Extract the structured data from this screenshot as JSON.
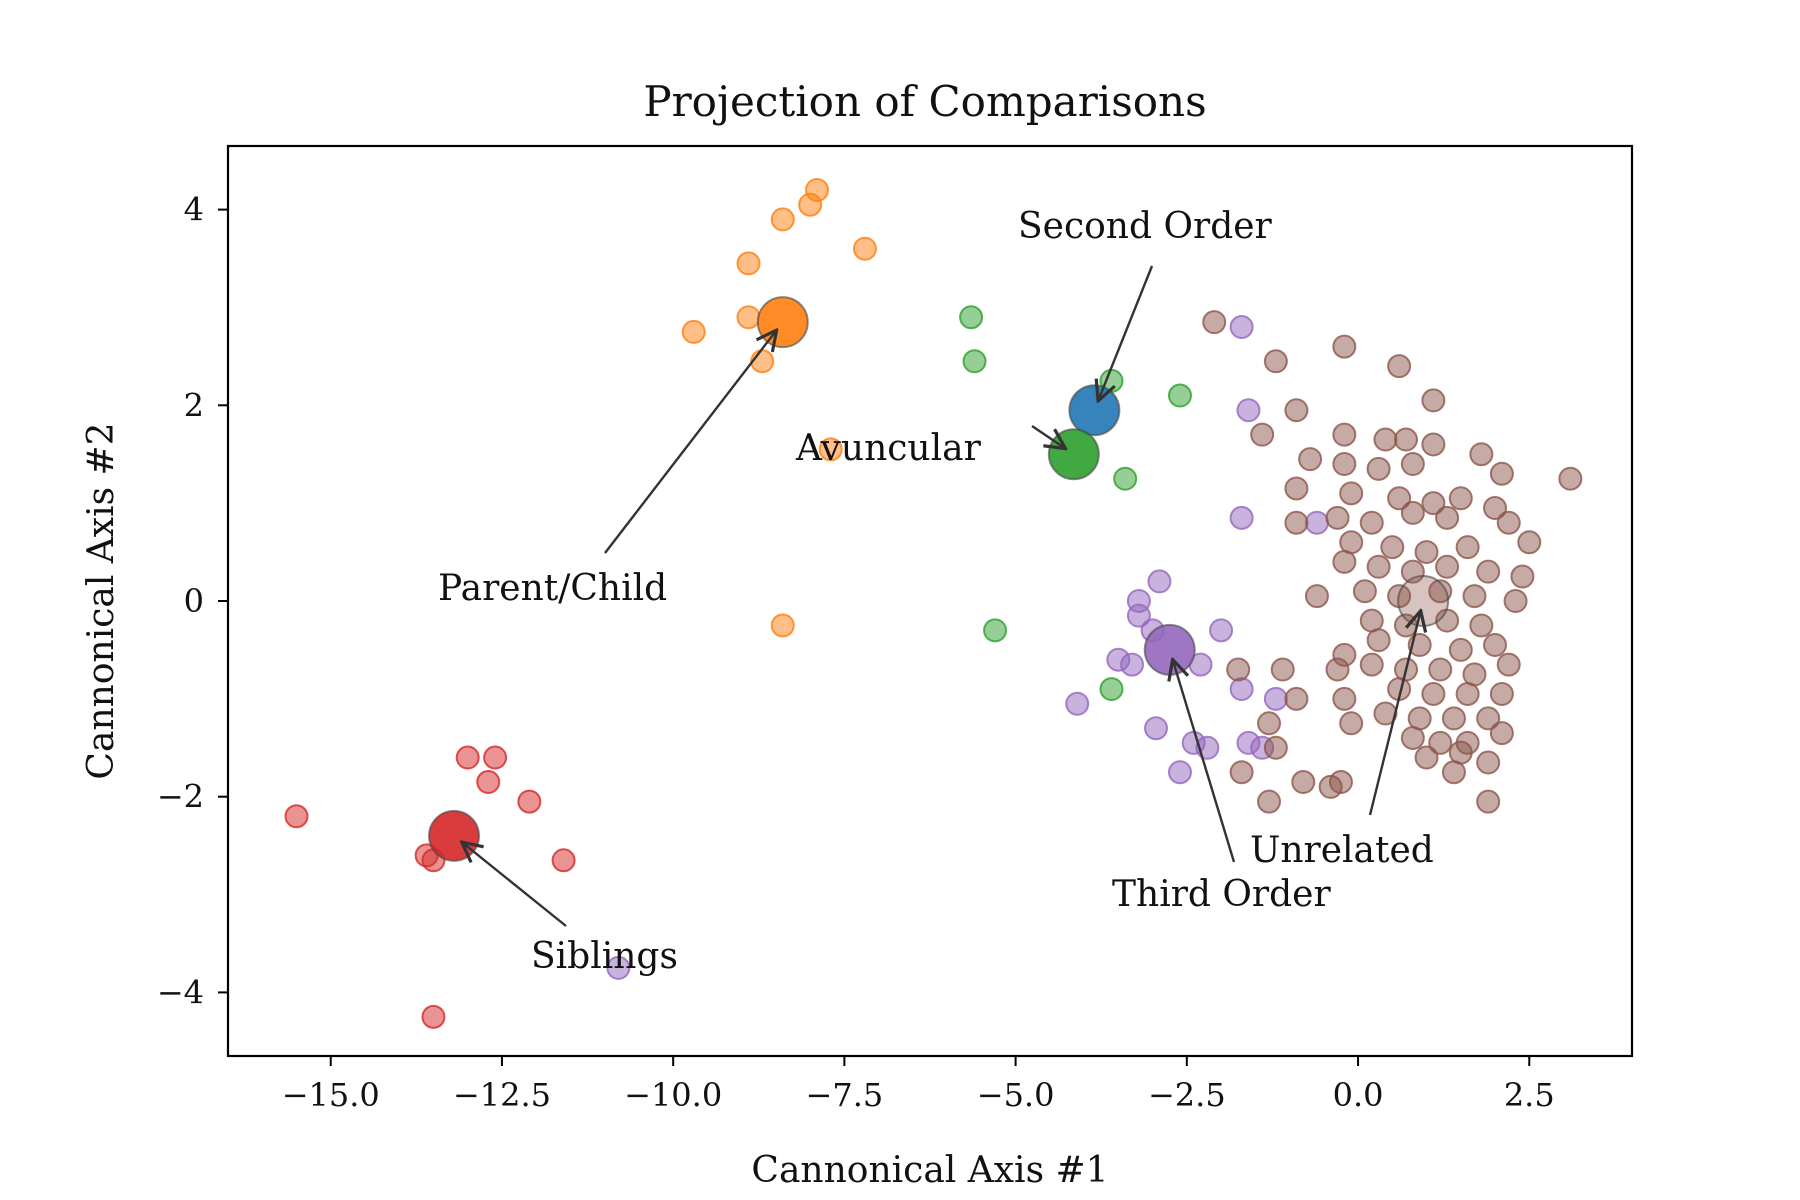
{
  "chart_data": {
    "type": "scatter",
    "title": "Projection of Comparisons",
    "xlabel": "Cannonical Axis #1",
    "ylabel": "Cannonical Axis #2",
    "xlim": [
      -16.5,
      4
    ],
    "ylim": [
      -4.65,
      4.65
    ],
    "xticks": [
      -15.0,
      -12.5,
      -10.0,
      -7.5,
      -5.0,
      -2.5,
      0.0,
      2.5
    ],
    "xtick_labels": [
      "−15.0",
      "−12.5",
      "−10.0",
      "−7.5",
      "−5.0",
      "−2.5",
      "0.0",
      "2.5"
    ],
    "yticks": [
      -4,
      -2,
      0,
      2,
      4
    ],
    "ytick_labels": [
      "−4",
      "−2",
      "0",
      "2",
      "4"
    ],
    "grid": false,
    "series": [
      {
        "name": "Parent/Child",
        "color": "#ff7f0e",
        "points": [
          [
            -7.9,
            4.2
          ],
          [
            -8.0,
            4.05
          ],
          [
            -8.4,
            3.9
          ],
          [
            -7.2,
            3.6
          ],
          [
            -8.9,
            3.45
          ],
          [
            -8.9,
            2.9
          ],
          [
            -9.7,
            2.75
          ],
          [
            -8.7,
            2.45
          ],
          [
            -7.7,
            1.55
          ],
          [
            -8.4,
            -0.25
          ]
        ],
        "centroid": [
          -8.4,
          2.85
        ]
      },
      {
        "name": "Second Order",
        "color": "#1f77b4",
        "points": [],
        "centroid": [
          -3.85,
          1.95
        ]
      },
      {
        "name": "Avuncular",
        "color": "#2ca02c",
        "points": [
          [
            -5.65,
            2.9
          ],
          [
            -5.6,
            2.45
          ],
          [
            -3.6,
            2.25
          ],
          [
            -2.6,
            2.1
          ],
          [
            -3.4,
            1.25
          ],
          [
            -5.3,
            -0.3
          ],
          [
            -3.6,
            -0.9
          ]
        ],
        "centroid": [
          -4.15,
          1.5
        ]
      },
      {
        "name": "Siblings",
        "color": "#d62728",
        "points": [
          [
            -13.0,
            -1.6
          ],
          [
            -12.6,
            -1.6
          ],
          [
            -12.7,
            -1.85
          ],
          [
            -12.1,
            -2.05
          ],
          [
            -15.5,
            -2.2
          ],
          [
            -13.6,
            -2.6
          ],
          [
            -13.5,
            -2.65
          ],
          [
            -11.6,
            -2.65
          ],
          [
            -13.5,
            -4.25
          ]
        ],
        "centroid": [
          -13.2,
          -2.4
        ]
      },
      {
        "name": "Third Order",
        "color": "#9467bd",
        "points": [
          [
            -1.7,
            2.8
          ],
          [
            -1.6,
            1.95
          ],
          [
            -1.7,
            0.85
          ],
          [
            -0.6,
            0.8
          ],
          [
            -2.9,
            0.2
          ],
          [
            -3.2,
            0.0
          ],
          [
            -3.2,
            -0.15
          ],
          [
            -3.0,
            -0.3
          ],
          [
            -2.0,
            -0.3
          ],
          [
            -3.5,
            -0.6
          ],
          [
            -3.3,
            -0.65
          ],
          [
            -2.3,
            -0.65
          ],
          [
            -4.1,
            -1.05
          ],
          [
            -1.7,
            -0.9
          ],
          [
            -1.2,
            -1.0
          ],
          [
            -2.95,
            -1.3
          ],
          [
            -2.4,
            -1.45
          ],
          [
            -2.2,
            -1.5
          ],
          [
            -1.6,
            -1.45
          ],
          [
            -1.4,
            -1.5
          ],
          [
            -2.6,
            -1.75
          ],
          [
            -10.8,
            -3.75
          ]
        ],
        "centroid": [
          -2.75,
          -0.5
        ]
      },
      {
        "name": "Unrelated",
        "color": "#8c564b",
        "points": [
          [
            -2.1,
            2.85
          ],
          [
            -0.2,
            2.6
          ],
          [
            -1.2,
            2.45
          ],
          [
            0.6,
            2.4
          ],
          [
            1.1,
            2.05
          ],
          [
            -0.9,
            1.95
          ],
          [
            -1.4,
            1.7
          ],
          [
            -0.2,
            1.7
          ],
          [
            0.4,
            1.65
          ],
          [
            0.7,
            1.65
          ],
          [
            1.1,
            1.6
          ],
          [
            -0.7,
            1.45
          ],
          [
            -0.2,
            1.4
          ],
          [
            0.3,
            1.35
          ],
          [
            0.8,
            1.4
          ],
          [
            1.8,
            1.5
          ],
          [
            2.1,
            1.3
          ],
          [
            3.1,
            1.25
          ],
          [
            -0.9,
            1.15
          ],
          [
            -0.1,
            1.1
          ],
          [
            0.6,
            1.05
          ],
          [
            1.1,
            1.0
          ],
          [
            1.5,
            1.05
          ],
          [
            2.0,
            0.95
          ],
          [
            -0.3,
            0.85
          ],
          [
            0.2,
            0.8
          ],
          [
            0.8,
            0.9
          ],
          [
            1.3,
            0.85
          ],
          [
            2.2,
            0.8
          ],
          [
            -0.9,
            0.8
          ],
          [
            -0.1,
            0.6
          ],
          [
            0.5,
            0.55
          ],
          [
            1.0,
            0.5
          ],
          [
            1.6,
            0.55
          ],
          [
            2.5,
            0.6
          ],
          [
            -0.2,
            0.4
          ],
          [
            0.3,
            0.35
          ],
          [
            0.8,
            0.3
          ],
          [
            1.3,
            0.35
          ],
          [
            1.9,
            0.3
          ],
          [
            2.4,
            0.25
          ],
          [
            0.1,
            0.1
          ],
          [
            0.6,
            0.05
          ],
          [
            1.2,
            0.1
          ],
          [
            1.7,
            0.05
          ],
          [
            2.3,
            0.0
          ],
          [
            -0.6,
            0.05
          ],
          [
            0.2,
            -0.2
          ],
          [
            0.7,
            -0.25
          ],
          [
            1.3,
            -0.2
          ],
          [
            1.8,
            -0.25
          ],
          [
            0.3,
            -0.4
          ],
          [
            0.9,
            -0.45
          ],
          [
            1.5,
            -0.5
          ],
          [
            2.0,
            -0.45
          ],
          [
            -0.2,
            -0.55
          ],
          [
            0.2,
            -0.65
          ],
          [
            0.7,
            -0.7
          ],
          [
            1.2,
            -0.7
          ],
          [
            1.7,
            -0.75
          ],
          [
            -0.3,
            -0.7
          ],
          [
            2.2,
            -0.65
          ],
          [
            -1.1,
            -0.7
          ],
          [
            -1.75,
            -0.7
          ],
          [
            0.6,
            -0.9
          ],
          [
            1.1,
            -0.95
          ],
          [
            1.6,
            -0.95
          ],
          [
            2.1,
            -0.95
          ],
          [
            -0.2,
            -1.0
          ],
          [
            -0.9,
            -1.0
          ],
          [
            0.4,
            -1.15
          ],
          [
            0.9,
            -1.2
          ],
          [
            1.4,
            -1.2
          ],
          [
            1.9,
            -1.2
          ],
          [
            -0.1,
            -1.25
          ],
          [
            -1.3,
            -1.25
          ],
          [
            0.8,
            -1.4
          ],
          [
            1.2,
            -1.45
          ],
          [
            1.6,
            -1.45
          ],
          [
            2.1,
            -1.35
          ],
          [
            -1.2,
            -1.5
          ],
          [
            1.0,
            -1.6
          ],
          [
            1.5,
            -1.55
          ],
          [
            1.9,
            -1.65
          ],
          [
            -1.7,
            -1.75
          ],
          [
            1.4,
            -1.75
          ],
          [
            -0.8,
            -1.85
          ],
          [
            -0.25,
            -1.85
          ],
          [
            -0.4,
            -1.9
          ],
          [
            -1.3,
            -2.05
          ],
          [
            1.9,
            -2.05
          ]
        ],
        "centroid": [
          0.95,
          0.0
        ]
      }
    ],
    "annotations": [
      {
        "text": "Parent/Child",
        "target": "Parent/Child"
      },
      {
        "text": "Second Order",
        "target": "Second Order"
      },
      {
        "text": "Avuncular",
        "target": "Avuncular"
      },
      {
        "text": "Siblings",
        "target": "Siblings"
      },
      {
        "text": "Third Order",
        "target": "Third Order"
      },
      {
        "text": "Unrelated",
        "target": "Unrelated"
      }
    ]
  }
}
